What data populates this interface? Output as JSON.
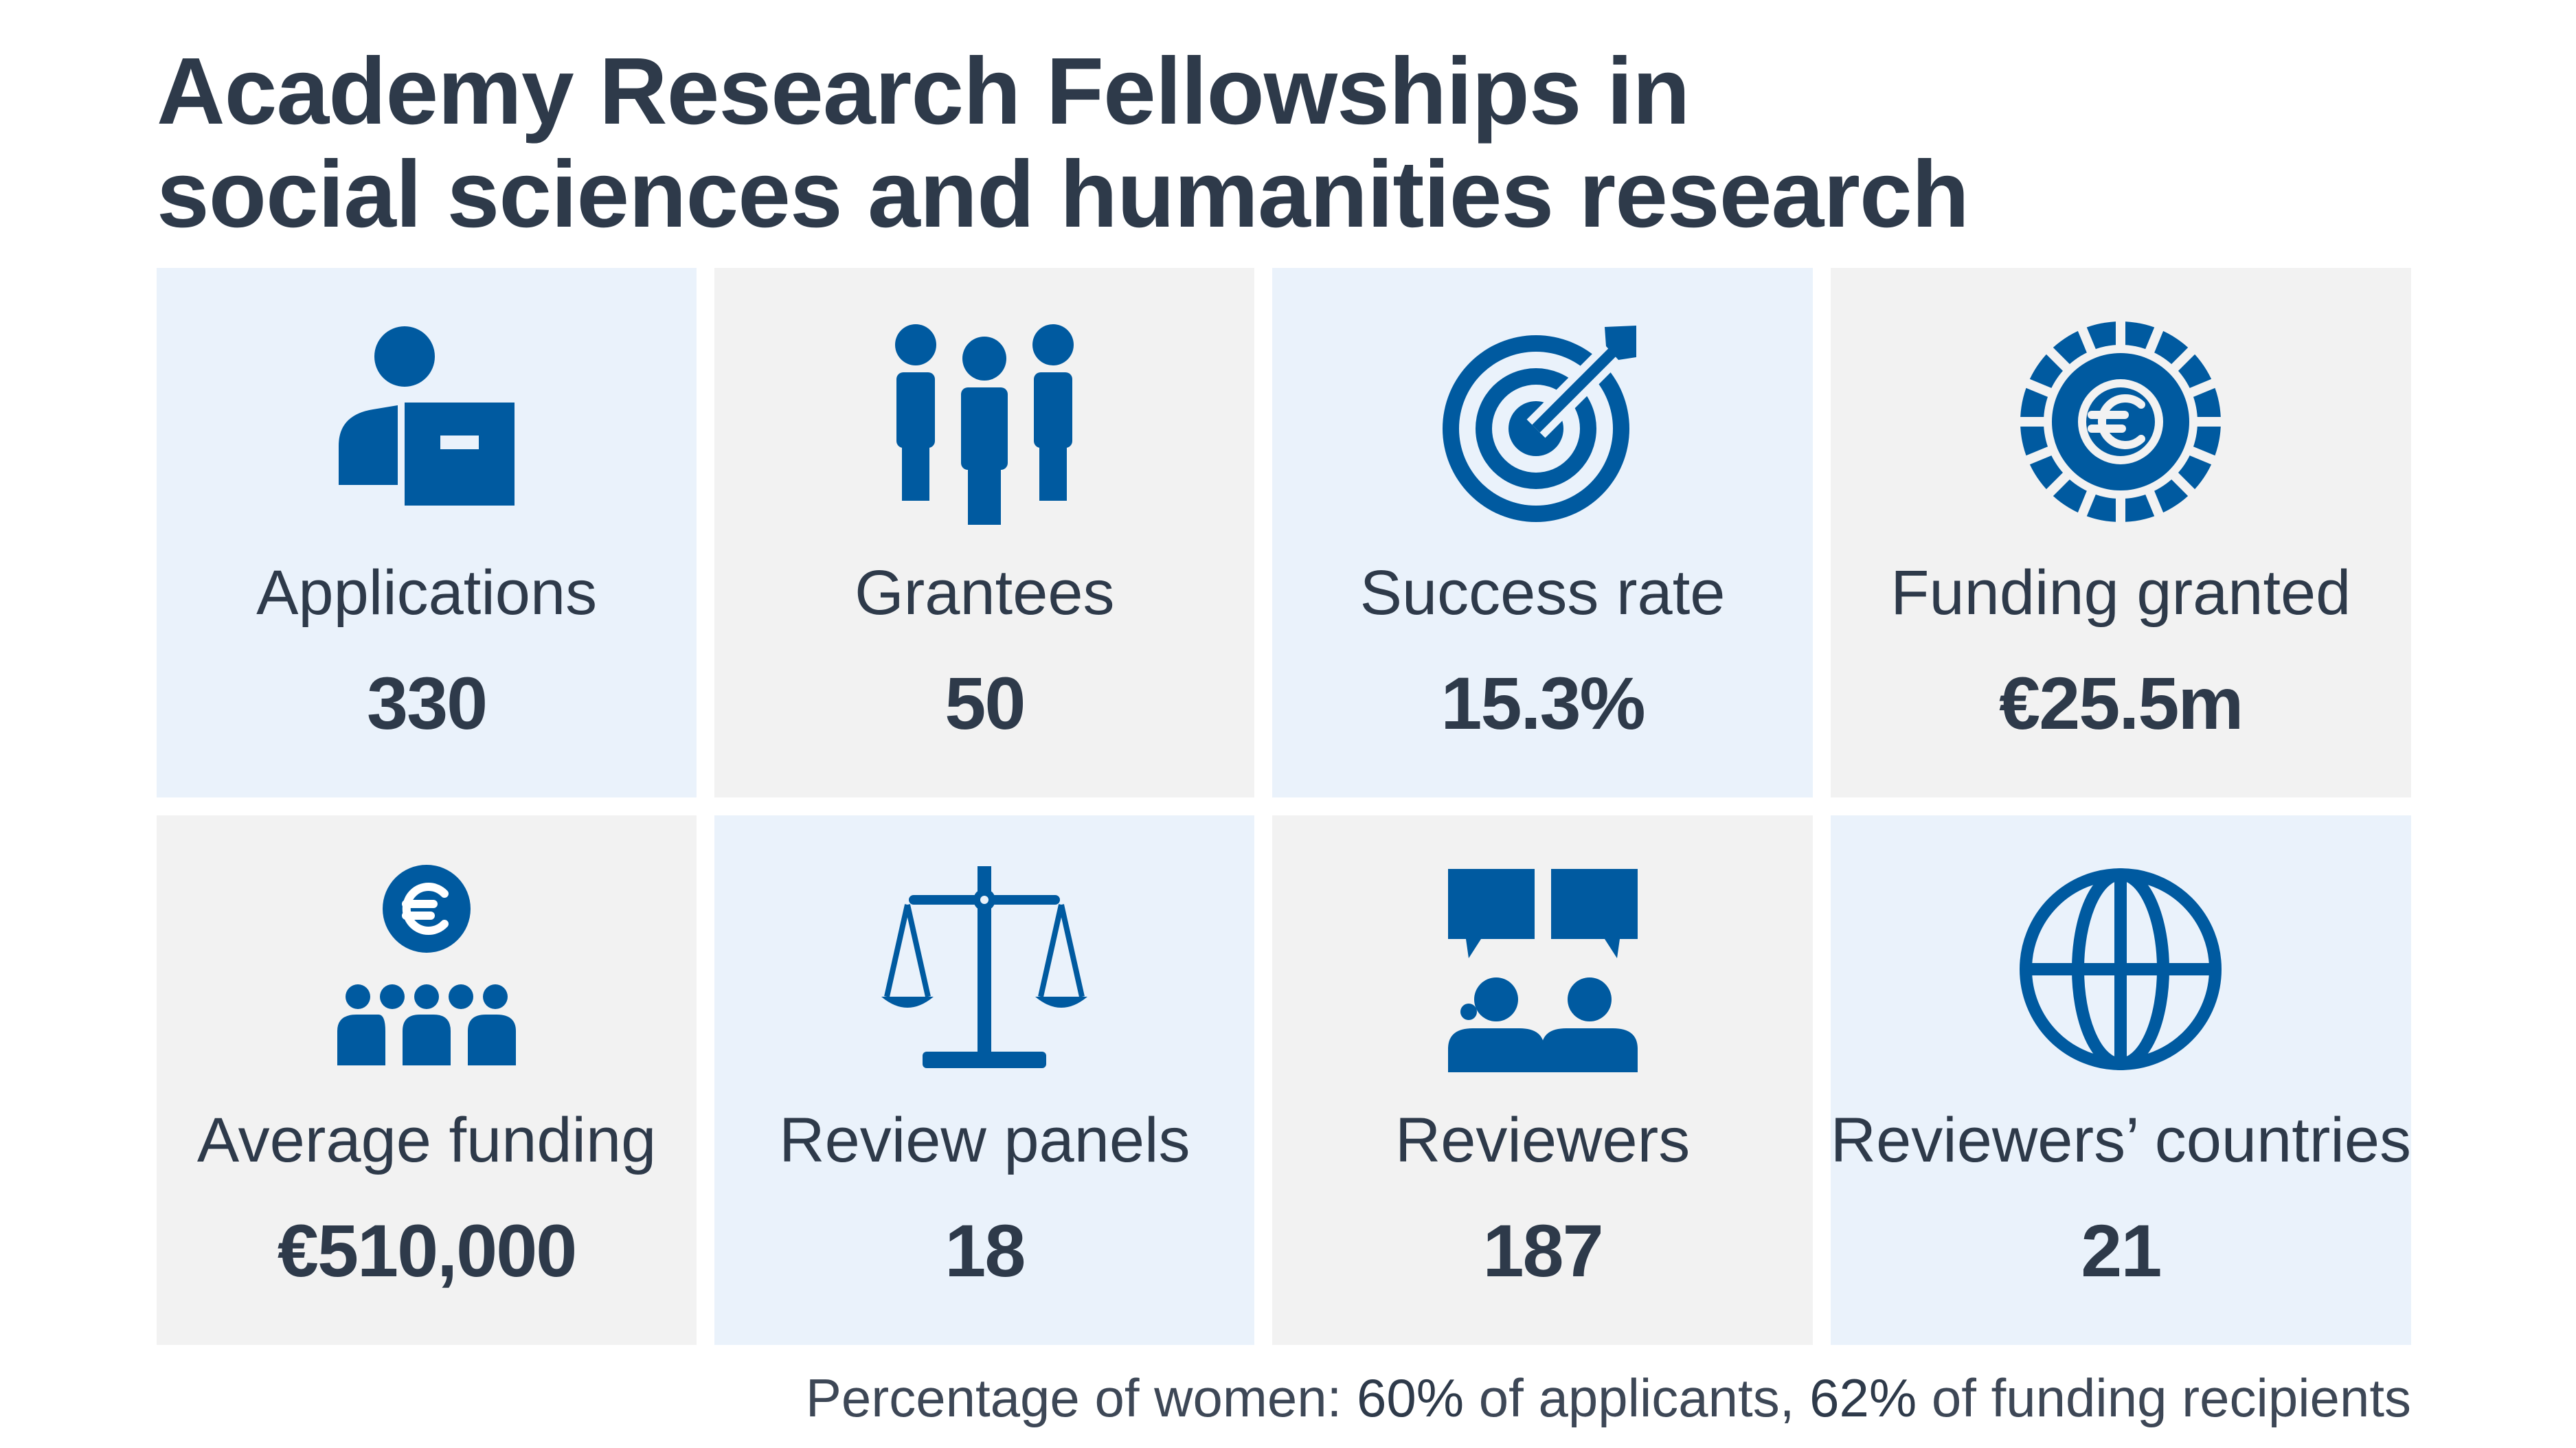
{
  "title": {
    "line1": "Academy Research Fellowships in",
    "line2": "social sciences and humanities research"
  },
  "colors": {
    "icon": "#005aa0",
    "tile_light": "#eaf2fb",
    "tile_grey": "#f2f2f2",
    "text": "#2e3a4a"
  },
  "tiles": [
    {
      "icon": "person-document-icon",
      "label": "Applications",
      "value": "330"
    },
    {
      "icon": "group-people-icon",
      "label": "Grantees",
      "value": "50"
    },
    {
      "icon": "target-arrow-icon",
      "label": "Success rate",
      "value": "15.3%"
    },
    {
      "icon": "euro-coin-icon",
      "label": "Funding granted",
      "value": "€25.5m"
    },
    {
      "icon": "euro-people-icon",
      "label": "Average funding",
      "value": "€510,000"
    },
    {
      "icon": "scales-icon",
      "label": "Review panels",
      "value": "18"
    },
    {
      "icon": "speech-people-icon",
      "label": "Reviewers",
      "value": "187"
    },
    {
      "icon": "globe-icon",
      "label": "Reviewers’ countries",
      "value": "21"
    }
  ],
  "footnote": {
    "prefix": "Percentage of women: ",
    "pct1": "60%",
    "mid": " of applicants, ",
    "pct2": "62%",
    "suffix": " of funding recipients"
  }
}
